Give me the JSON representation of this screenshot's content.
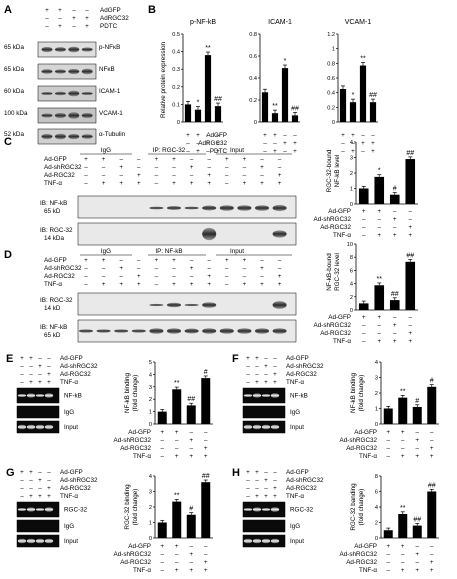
{
  "panels": {
    "A": {
      "letter": "A",
      "col_markers": [
        {
          "name": "AdGFP",
          "signs": [
            "+",
            "+",
            "–",
            "–"
          ]
        },
        {
          "name": "AdRGC32",
          "signs": [
            "–",
            "–",
            "+",
            "+"
          ]
        },
        {
          "name": "PDTC",
          "signs": [
            "–",
            "+",
            "–",
            "+"
          ]
        }
      ],
      "blots": [
        {
          "kda": "65 kDa",
          "protein": "p-NFκB"
        },
        {
          "kda": "65 kDa",
          "protein": "NFκB"
        },
        {
          "kda": "60 kDa",
          "protein": "ICAM-1"
        },
        {
          "kda": "100 kDa",
          "protein": "VCAM-1"
        },
        {
          "kda": "52 kDa",
          "protein": "α-Tubulin"
        }
      ]
    },
    "B": {
      "letter": "B",
      "ylabel": "Relative protein expression",
      "row_labels": [
        "AdGFP",
        "AdRGC32",
        "PDTC"
      ],
      "signs": [
        [
          "+",
          "+",
          "–",
          "–"
        ],
        [
          "–",
          "–",
          "+",
          "+"
        ],
        [
          "–",
          "+",
          "–",
          "+"
        ]
      ],
      "chart_data": [
        {
          "type": "bar",
          "title": "p-NF-kB",
          "categories": [
            "1",
            "2",
            "3",
            "4"
          ],
          "values": [
            0.1,
            0.07,
            0.38,
            0.09
          ],
          "ylim": [
            0,
            0.5
          ],
          "yticks": [
            "0",
            "0.1",
            "0.2",
            "0.3",
            "0.4",
            "0.5"
          ],
          "annotations": [
            "",
            "*",
            "**",
            "##"
          ]
        },
        {
          "type": "bar",
          "title": "ICAM-1",
          "categories": [
            "1",
            "2",
            "3",
            "4"
          ],
          "values": [
            0.27,
            0.08,
            0.49,
            0.06
          ],
          "ylim": [
            0,
            0.8
          ],
          "yticks": [
            "0",
            "0.2",
            "0.4",
            "0.6",
            "0.8"
          ],
          "annotations": [
            "",
            "**",
            "*",
            "##"
          ]
        },
        {
          "type": "bar",
          "title": "VCAM-1",
          "categories": [
            "1",
            "2",
            "3",
            "4"
          ],
          "values": [
            0.45,
            0.27,
            0.77,
            0.27
          ],
          "ylim": [
            0,
            1.2
          ],
          "yticks": [
            "0",
            "0.2",
            "0.4",
            "0.6",
            "0.8",
            "1",
            "1.2"
          ],
          "annotations": [
            "",
            "*",
            "**",
            "##"
          ]
        }
      ]
    },
    "C": {
      "letter": "C",
      "row_labels": [
        "Ad-GFP",
        "Ad-shRGC32",
        "Ad-RGC32",
        "TNF-α"
      ],
      "group_headers": [
        "IgG",
        "IP: RGC-32",
        "Input"
      ],
      "blot_labels": [
        [
          "IB: NF-kB",
          "65 kD"
        ],
        [
          "IB: RGC-32",
          "14 kDa"
        ]
      ],
      "ylabel": [
        "RGC-32-bound",
        "NF-kB level"
      ],
      "chart_data": {
        "type": "bar",
        "categories": [
          "1",
          "2",
          "3",
          "4"
        ],
        "values": [
          1.0,
          1.75,
          0.6,
          2.9
        ],
        "ylim": [
          0,
          4
        ],
        "yticks": [
          "0",
          "1",
          "2",
          "3",
          "4"
        ],
        "annotations": [
          "",
          "*",
          "#",
          "##"
        ],
        "signs": [
          [
            "+",
            "+",
            "–",
            "–"
          ],
          [
            "–",
            "–",
            "+",
            "–"
          ],
          [
            "–",
            "–",
            "–",
            "+"
          ],
          [
            "–",
            "+",
            "+",
            "+"
          ]
        ]
      }
    },
    "D": {
      "letter": "D",
      "row_labels": [
        "Ad-GFP",
        "Ad-shRGC32",
        "Ad-RGC32",
        "TNF-α"
      ],
      "group_headers": [
        "IgG",
        "IP: NF-kB",
        "Input"
      ],
      "blot_labels": [
        [
          "IB: RGC-32",
          "14 kD"
        ],
        [
          "IB: NF-kB",
          "65 kD"
        ]
      ],
      "ylabel": [
        "NF-kB-bound",
        "RGC-32 level"
      ],
      "chart_data": {
        "type": "bar",
        "categories": [
          "1",
          "2",
          "3",
          "4"
        ],
        "values": [
          1.0,
          3.75,
          1.5,
          7.3
        ],
        "ylim": [
          0,
          10
        ],
        "yticks": [
          "0",
          "2",
          "4",
          "6",
          "8",
          "10"
        ],
        "annotations": [
          "",
          "**",
          "##",
          "##"
        ],
        "signs": [
          [
            "+",
            "+",
            "–",
            "–"
          ],
          [
            "–",
            "–",
            "+",
            "–"
          ],
          [
            "–",
            "–",
            "–",
            "+"
          ],
          [
            "–",
            "+",
            "+",
            "+"
          ]
        ]
      }
    },
    "E": {
      "letter": "E",
      "gel_rows": [
        "Ad-GFP",
        "Ad-shRGC32",
        "Ad-RGC32",
        "TNF-α"
      ],
      "gel_labels": [
        "NF-kB",
        "IgG",
        "Input"
      ],
      "ylabel": [
        "NF-kB binding",
        "(fold change)"
      ],
      "chart_data": {
        "type": "bar",
        "categories": [
          "1",
          "2",
          "3",
          "4"
        ],
        "values": [
          1.0,
          2.8,
          1.5,
          3.7
        ],
        "ylim": [
          0,
          5
        ],
        "yticks": [
          "0",
          "1",
          "2",
          "3",
          "4",
          "5"
        ],
        "annotations": [
          "",
          "**",
          "##",
          "#"
        ],
        "signs": [
          [
            "+",
            "+",
            "–",
            "–"
          ],
          [
            "–",
            "–",
            "+",
            "–"
          ],
          [
            "–",
            "–",
            "–",
            "+"
          ],
          [
            "–",
            "+",
            "+",
            "+"
          ]
        ]
      }
    },
    "F": {
      "letter": "F",
      "gel_rows": [
        "Ad-GFP",
        "Ad-shRGC32",
        "Ad-RGC32",
        "TNF-α"
      ],
      "gel_labels": [
        "NF-kB",
        "IgG",
        "Input"
      ],
      "ylabel": [
        "NF-kB binding",
        "(fold change)"
      ],
      "chart_data": {
        "type": "bar",
        "categories": [
          "1",
          "2",
          "3",
          "4"
        ],
        "values": [
          1.0,
          1.7,
          1.1,
          2.4
        ],
        "ylim": [
          0,
          4
        ],
        "yticks": [
          "0",
          "1",
          "2",
          "3",
          "4"
        ],
        "annotations": [
          "",
          "**",
          "#",
          "#"
        ],
        "signs": [
          [
            "+",
            "+",
            "–",
            "–"
          ],
          [
            "–",
            "–",
            "+",
            "–"
          ],
          [
            "–",
            "–",
            "–",
            "+"
          ],
          [
            "–",
            "+",
            "+",
            "+"
          ]
        ]
      }
    },
    "G": {
      "letter": "G",
      "gel_rows": [
        "Ad-GFP",
        "Ad-shRGC32",
        "Ad-RGC32",
        "TNF-α"
      ],
      "gel_labels": [
        "RGC-32",
        "IgG",
        "Input"
      ],
      "ylabel": [
        "RGC-32 binding",
        "(fold change)"
      ],
      "chart_data": {
        "type": "bar",
        "categories": [
          "1",
          "2",
          "3",
          "4"
        ],
        "values": [
          1.0,
          2.35,
          1.5,
          3.6
        ],
        "ylim": [
          0,
          4
        ],
        "yticks": [
          "0",
          "1",
          "2",
          "3",
          "4"
        ],
        "annotations": [
          "",
          "**",
          "#",
          "##"
        ],
        "signs": [
          [
            "+",
            "+",
            "–",
            "–"
          ],
          [
            "–",
            "–",
            "+",
            "–"
          ],
          [
            "–",
            "–",
            "–",
            "+"
          ],
          [
            "–",
            "+",
            "+",
            "+"
          ]
        ]
      }
    },
    "H": {
      "letter": "H",
      "gel_rows": [
        "Ad-GFP",
        "Ad-shRGC32",
        "Ad-RGC32",
        "TNF-α"
      ],
      "gel_labels": [
        "RGC-32",
        "IgG",
        "Input"
      ],
      "ylabel": [
        "RGC-32 banding",
        "(fold change)"
      ],
      "chart_data": {
        "type": "bar",
        "categories": [
          "1",
          "2",
          "3",
          "4"
        ],
        "values": [
          1.0,
          3.1,
          1.6,
          6.0
        ],
        "ylim": [
          0,
          8
        ],
        "yticks": [
          "0",
          "2",
          "4",
          "6",
          "8"
        ],
        "annotations": [
          "",
          "**",
          "##",
          "##"
        ],
        "signs": [
          [
            "+",
            "+",
            "–",
            "–"
          ],
          [
            "–",
            "–",
            "+",
            "–"
          ],
          [
            "–",
            "–",
            "–",
            "+"
          ],
          [
            "–",
            "+",
            "+",
            "+"
          ]
        ]
      }
    }
  }
}
